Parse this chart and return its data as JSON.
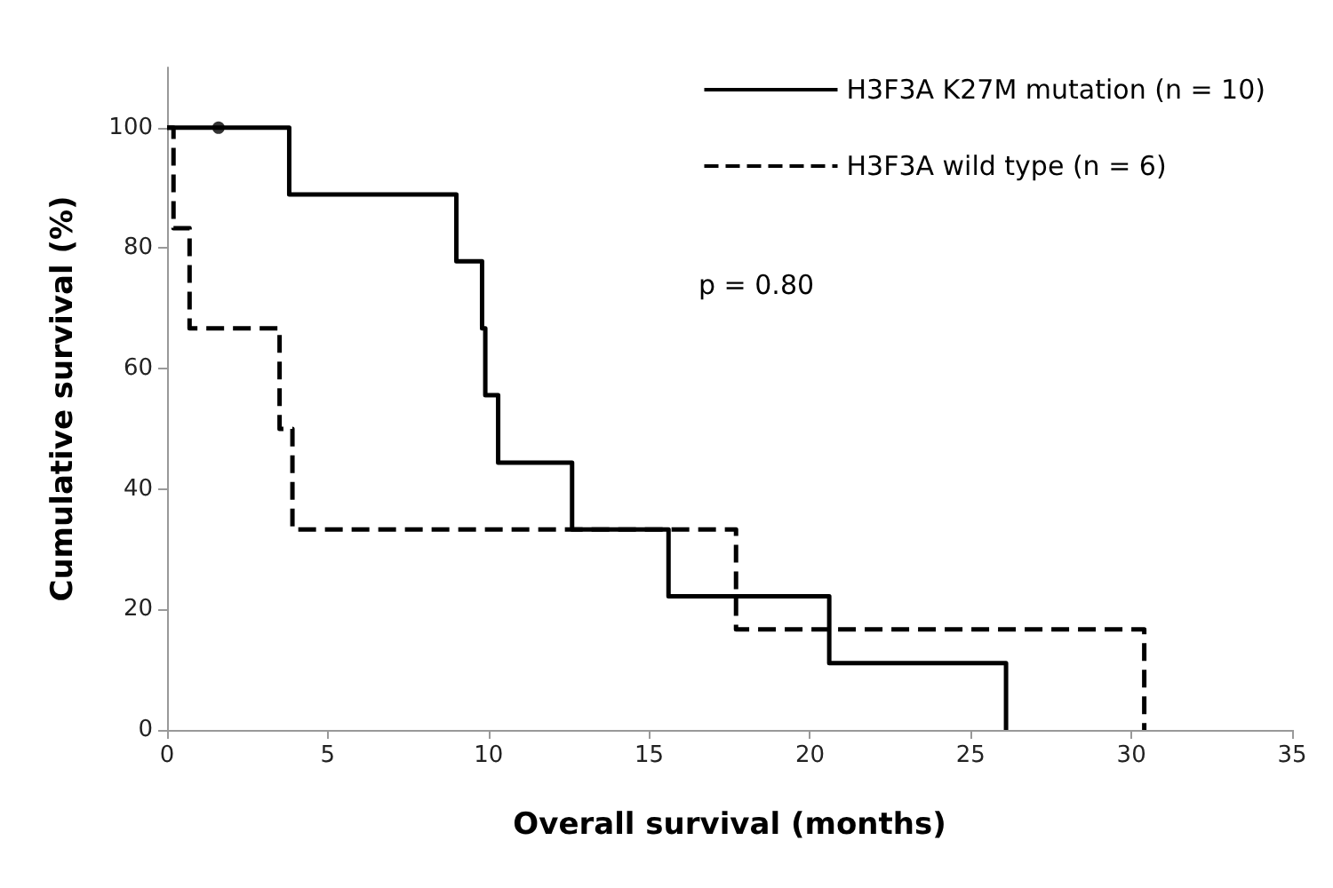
{
  "chart_data": {
    "type": "step",
    "xlabel": "Overall survival (months)",
    "ylabel": "Cumulative survival (%)",
    "xlim": [
      0,
      35
    ],
    "xticks": [
      0,
      5,
      10,
      15,
      20,
      25,
      30,
      35
    ],
    "ylim": [
      0,
      110
    ],
    "yticks": [
      0,
      20,
      40,
      60,
      80,
      100
    ],
    "grid": false,
    "legend": "top right",
    "marker": "none",
    "annotations": [
      "p = 0.80"
    ],
    "series": [
      {
        "name": "H3F3A K27M mutation (n = 10)",
        "color": "#000000",
        "line_style": "solid",
        "x": [
          0,
          3.8,
          9.0,
          9.8,
          9.9,
          10.3,
          12.6,
          15.6,
          20.6,
          26.1
        ],
        "values": [
          100,
          88.9,
          77.8,
          66.7,
          55.6,
          44.4,
          33.3,
          22.2,
          11.1,
          0
        ]
      },
      {
        "name": "H3F3A wild type (n = 6)",
        "color": "#000000",
        "line_style": "dashed",
        "x": [
          0,
          0.2,
          0.7,
          3.5,
          3.9,
          17.7,
          30.4
        ],
        "values": [
          100,
          83.3,
          66.7,
          50,
          33.3,
          16.7,
          0
        ]
      },
      {
        "type": "scatter",
        "marker": "circle",
        "color": "#000000",
        "x": [
          1.6
        ],
        "values": [
          100
        ]
      }
    ]
  }
}
